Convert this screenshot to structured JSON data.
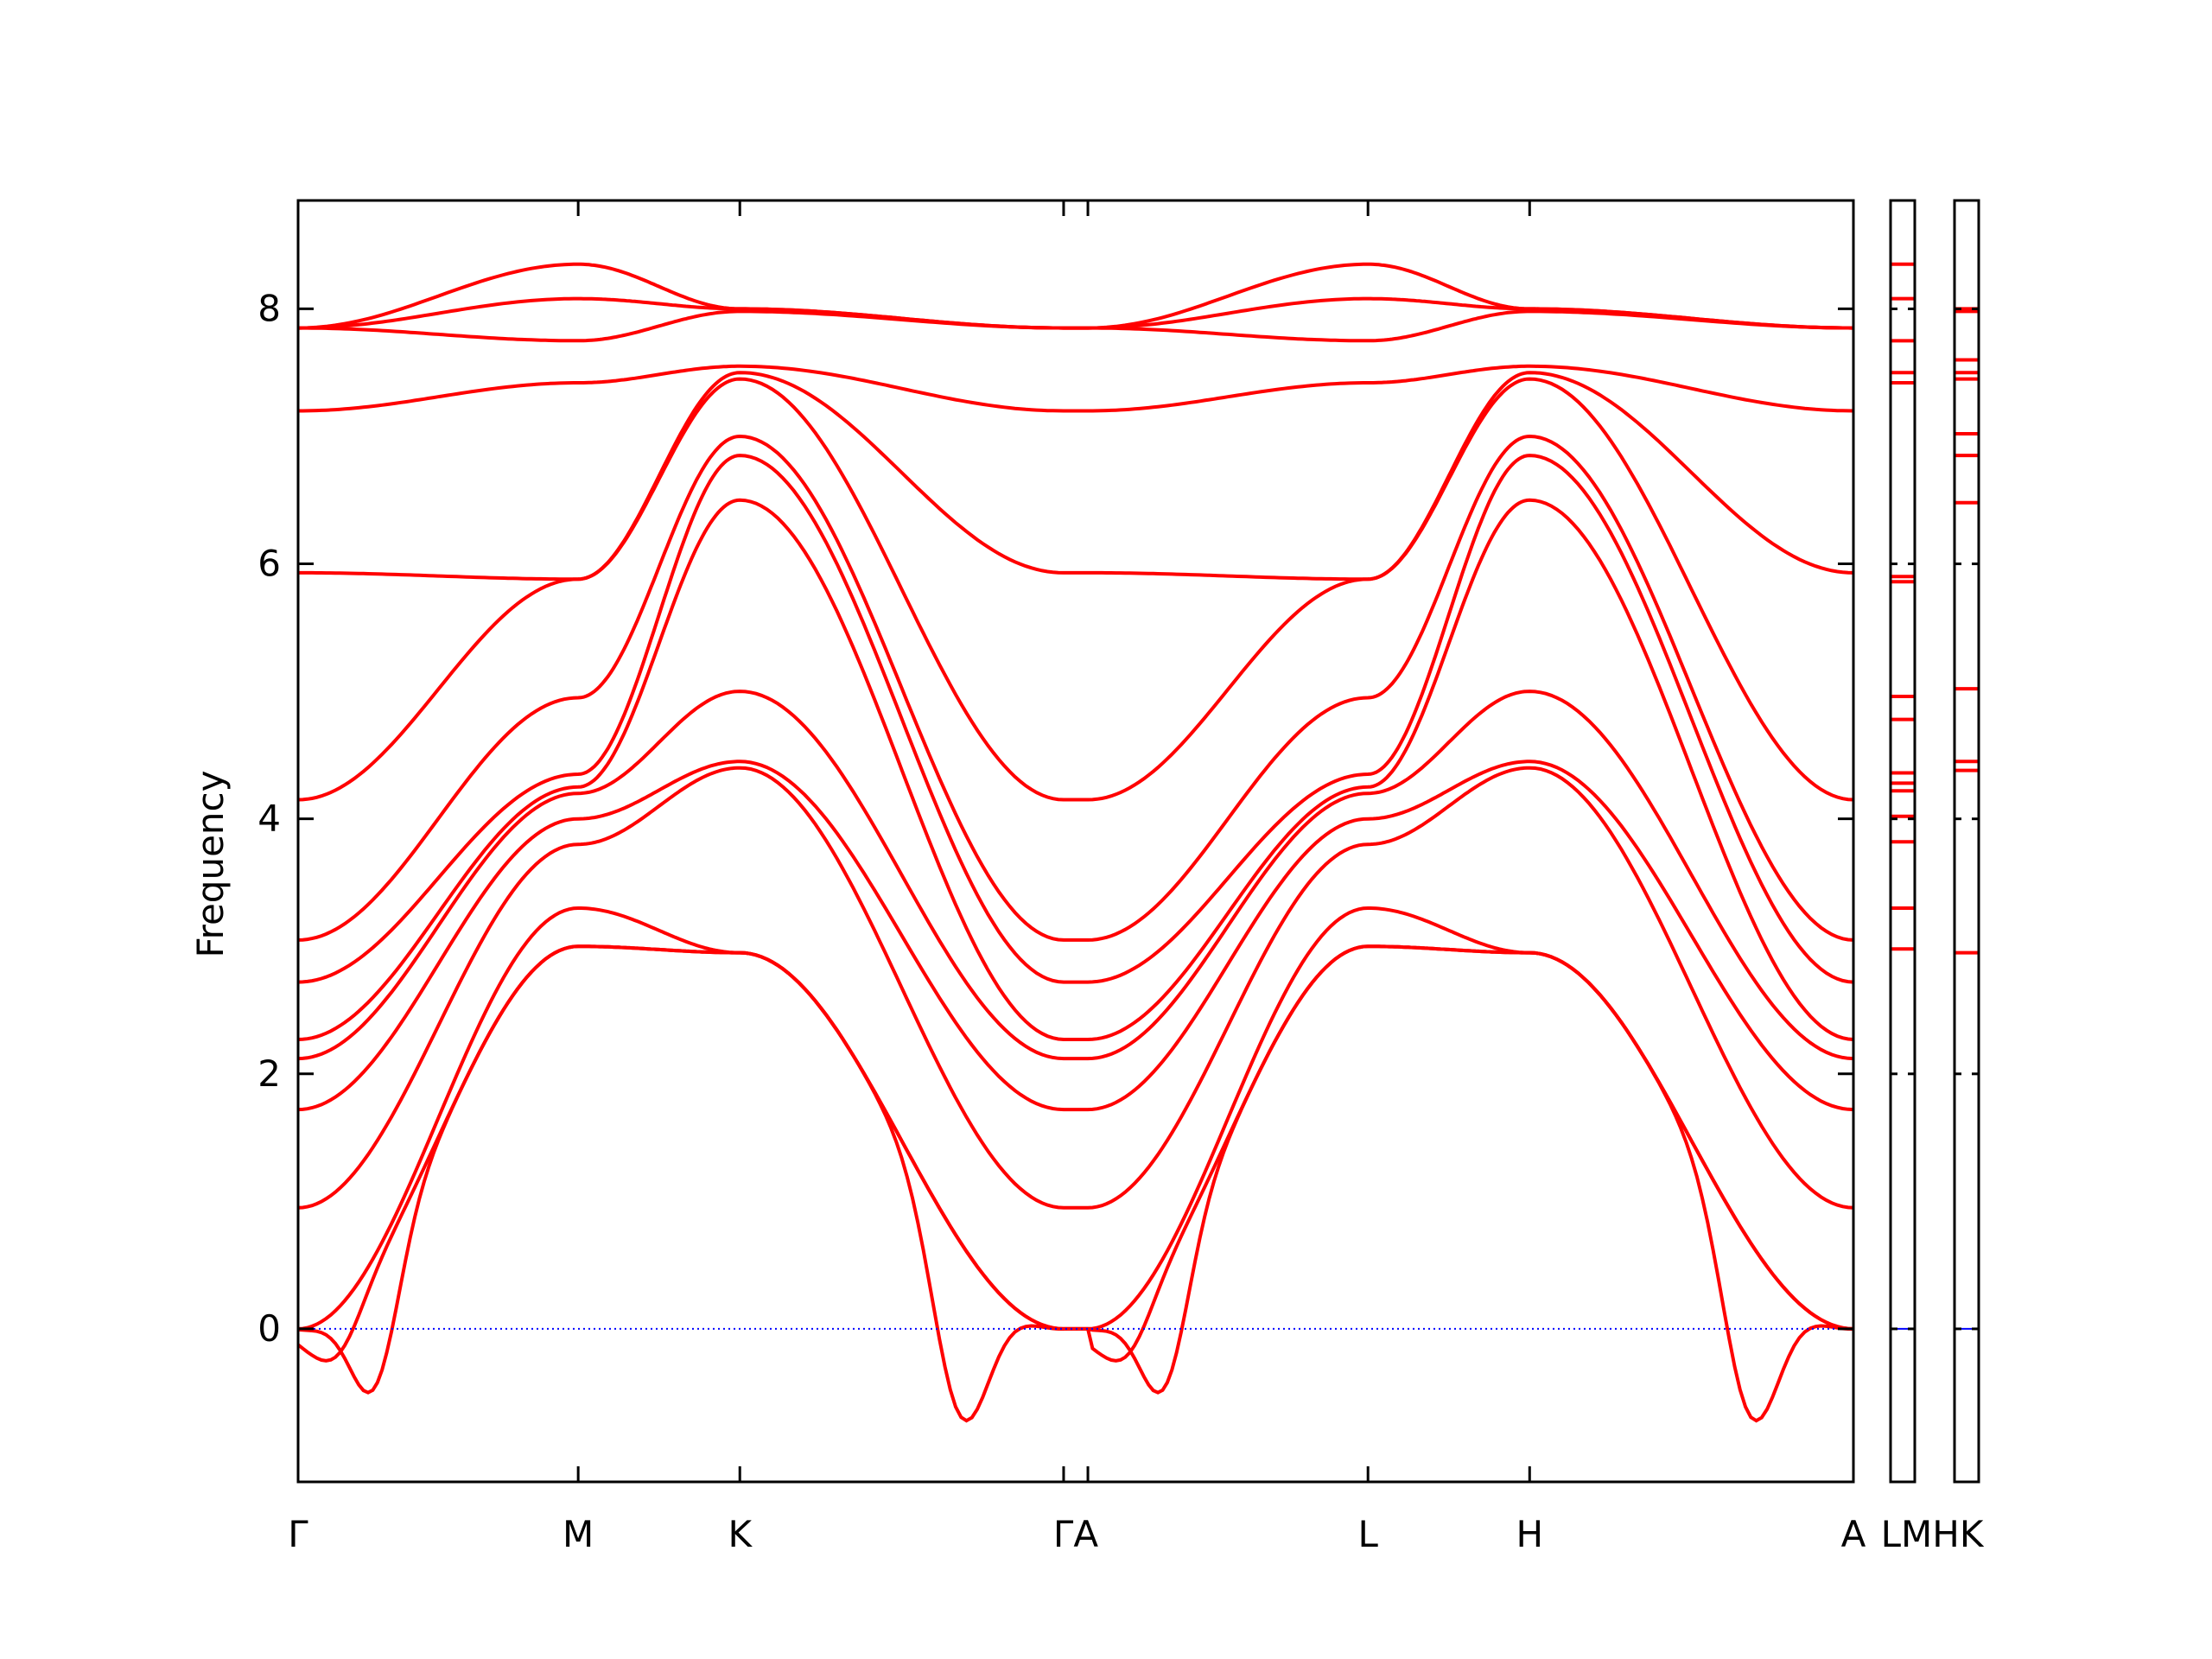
{
  "chart_data": {
    "type": "line",
    "title": "",
    "xlabel": "",
    "ylabel": "Frequency",
    "ylim": [
      -1.2,
      8.85
    ],
    "yticks": [
      0,
      2,
      4,
      6,
      8
    ],
    "path_points": [
      "Γ",
      "M",
      "K",
      "Γ",
      "A",
      "L",
      "H",
      "A"
    ],
    "path_positions": [
      0,
      0.577,
      0.91,
      1.577,
      1.627,
      2.204,
      2.537,
      3.204
    ],
    "xtick_labels": [
      "Γ",
      "M",
      "K",
      "ΓA",
      "L",
      "H",
      "A"
    ],
    "xtick_positions": [
      0,
      0.577,
      0.91,
      1.602,
      2.204,
      2.537,
      3.204
    ],
    "extra_axis_labels": [
      "LMHK"
    ],
    "zero_line": {
      "y": 0,
      "color": "#0000ff",
      "style": "dotted"
    },
    "series_color": "#ff0000",
    "bands": {
      "values_at_path_points": [
        [
          0.0,
          3.0,
          2.95,
          0.0,
          0.0,
          3.0,
          2.95,
          0.0
        ],
        [
          0.0,
          3.0,
          2.95,
          0.0,
          0.0,
          3.0,
          2.95,
          0.0
        ],
        [
          0.0,
          3.3,
          2.95,
          0.0,
          0.0,
          3.3,
          2.95,
          0.0
        ],
        [
          0.95,
          3.8,
          4.4,
          0.95,
          0.95,
          3.8,
          4.4,
          0.95
        ],
        [
          1.72,
          4.0,
          4.45,
          1.72,
          1.72,
          4.0,
          4.45,
          1.72
        ],
        [
          2.12,
          4.2,
          5.0,
          2.12,
          2.12,
          4.2,
          5.0,
          2.12
        ],
        [
          2.27,
          4.25,
          6.5,
          2.27,
          2.27,
          4.25,
          6.5,
          2.27
        ],
        [
          2.72,
          4.35,
          6.85,
          2.72,
          2.72,
          4.35,
          6.85,
          2.72
        ],
        [
          3.05,
          4.95,
          7.0,
          3.05,
          3.05,
          4.95,
          7.0,
          3.05
        ],
        [
          4.15,
          5.88,
          7.45,
          4.15,
          4.15,
          5.88,
          7.45,
          4.15
        ],
        [
          5.93,
          5.88,
          7.5,
          5.93,
          5.93,
          5.88,
          7.5,
          5.93
        ],
        [
          7.2,
          7.42,
          7.55,
          7.2,
          7.2,
          7.42,
          7.55,
          7.2
        ],
        [
          7.85,
          7.75,
          7.98,
          7.85,
          7.85,
          7.75,
          7.98,
          7.85
        ],
        [
          7.85,
          8.08,
          8.0,
          7.85,
          7.85,
          8.08,
          8.0,
          7.85
        ],
        [
          7.85,
          8.35,
          8.0,
          7.85,
          7.85,
          8.35,
          8.0,
          7.85
        ]
      ],
      "soft_dips": [
        {
          "segment": 0,
          "band": 0,
          "at": 0.25,
          "value": -0.5
        },
        {
          "segment": 0,
          "band": 1,
          "at": 0.1,
          "value": -0.25
        },
        {
          "segment": 2,
          "band": 0,
          "at": 0.7,
          "value": -0.72
        },
        {
          "segment": 4,
          "band": 0,
          "at": 0.25,
          "value": -0.5
        },
        {
          "segment": 4,
          "band": 1,
          "at": 0.1,
          "value": -0.25
        },
        {
          "segment": 6,
          "band": 0,
          "at": 0.7,
          "value": -0.72
        }
      ]
    },
    "dos_panels": [
      {
        "label": "LM",
        "levels": [
          2.98,
          3.3,
          3.82,
          4.02,
          4.22,
          4.28,
          4.36,
          4.78,
          4.96,
          5.86,
          5.9,
          7.42,
          7.5,
          7.75,
          8.08,
          8.35
        ]
      },
      {
        "label": "HK",
        "levels": [
          2.95,
          4.38,
          4.45,
          5.02,
          6.48,
          6.85,
          7.02,
          7.45,
          7.5,
          7.6,
          7.98,
          8.0
        ]
      }
    ]
  }
}
